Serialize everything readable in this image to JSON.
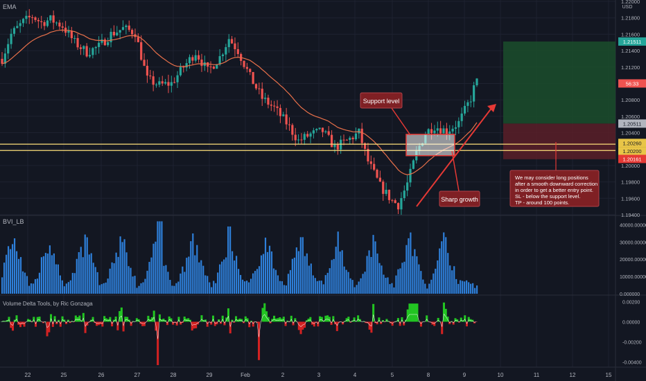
{
  "panes": {
    "main": {
      "label": "EMA",
      "currency": "USD"
    },
    "volume": {
      "label": "BVI_LB"
    },
    "delta": {
      "label": "Volume Delta Tools, by Ric Gonzaga"
    }
  },
  "price_axis": {
    "ticks": [
      "1.22000",
      "1.21800",
      "1.21600",
      "1.21400",
      "1.21200",
      "1.21000",
      "1.20800",
      "1.20600",
      "1.20400",
      "1.20200",
      "1.20000",
      "1.19800",
      "1.19600",
      "1.19400"
    ],
    "badges": [
      {
        "id": "tp",
        "text": "1.21511",
        "color": "#26a69a"
      },
      {
        "id": "last",
        "text": "56:33",
        "color": "#ef5350"
      },
      {
        "id": "entry",
        "text": "1.20511",
        "color": "#b2b5be"
      },
      {
        "id": "upper",
        "text": "1.20260",
        "color": "#e8c547"
      },
      {
        "id": "lower",
        "text": "1.20200",
        "color": "#e8c547"
      },
      {
        "id": "sl",
        "text": "1.20161",
        "color": "#e53935"
      }
    ]
  },
  "volume_axis": {
    "ticks": [
      "40000.000000",
      "30000.000000",
      "20000.000000",
      "10000.000000",
      "0.000000"
    ]
  },
  "delta_axis": {
    "ticks": [
      "0.00200",
      "0.00000",
      "-0.00200",
      "-0.00400"
    ]
  },
  "time_axis": {
    "ticks": [
      "22",
      "25",
      "26",
      "27",
      "28",
      "29",
      "Feb",
      "2",
      "3",
      "4",
      "5",
      "8",
      "9",
      "10",
      "11",
      "12",
      "15"
    ]
  },
  "annotations": {
    "support": "Support level",
    "growth": "Sharp growth",
    "note": [
      "We may consider long positions",
      "after a smooth downward correction",
      "in order to get a better entry point.",
      "SL - below the support level.",
      "TP - around 100 points."
    ]
  },
  "colors": {
    "background": "#131722",
    "up": "#26a69a",
    "down": "#ef5350",
    "ema": "#e8704a",
    "support": "#ffe07a",
    "volume": "#2e7fd9",
    "delta_pos": "#22c522",
    "delta_neg": "#d32222",
    "tp_zone": "#1b4d2c",
    "sl_zone": "#5a1f28",
    "annotation": "#7f2024"
  },
  "chart_data": [
    {
      "type": "candlestick",
      "title": "EMA",
      "ylim": [
        1.194,
        1.22
      ],
      "y_unit": "USD",
      "ema_visible": true,
      "support_levels": [
        1.2026,
        1.202
      ],
      "long_position": {
        "entry": 1.20511,
        "take_profit": 1.21511,
        "stop_loss": 1.20161
      },
      "last_price_marker": "56:33",
      "x_ticks": [
        "22",
        "25",
        "26",
        "27",
        "28",
        "29",
        "Feb",
        "2",
        "3",
        "4",
        "5",
        "8",
        "9",
        "10",
        "11",
        "12",
        "15"
      ],
      "anchors": [
        {
          "t": 0,
          "p": 1.213
        },
        {
          "t": 3,
          "p": 1.216
        },
        {
          "t": 7,
          "p": 1.2175
        },
        {
          "t": 10,
          "p": 1.2182
        },
        {
          "t": 13,
          "p": 1.2174
        },
        {
          "t": 16,
          "p": 1.2178
        },
        {
          "t": 20,
          "p": 1.217
        },
        {
          "t": 24,
          "p": 1.215
        },
        {
          "t": 28,
          "p": 1.2138
        },
        {
          "t": 32,
          "p": 1.2145
        },
        {
          "t": 36,
          "p": 1.216
        },
        {
          "t": 40,
          "p": 1.2167
        },
        {
          "t": 44,
          "p": 1.2162
        },
        {
          "t": 48,
          "p": 1.2105
        },
        {
          "t": 52,
          "p": 1.2098
        },
        {
          "t": 56,
          "p": 1.21
        },
        {
          "t": 60,
          "p": 1.212
        },
        {
          "t": 64,
          "p": 1.2138
        },
        {
          "t": 68,
          "p": 1.2115
        },
        {
          "t": 72,
          "p": 1.2132
        },
        {
          "t": 75,
          "p": 1.2155
        },
        {
          "t": 78,
          "p": 1.214
        },
        {
          "t": 82,
          "p": 1.2108
        },
        {
          "t": 86,
          "p": 1.2082
        },
        {
          "t": 90,
          "p": 1.207
        },
        {
          "t": 94,
          "p": 1.2052
        },
        {
          "t": 98,
          "p": 1.203
        },
        {
          "t": 102,
          "p": 1.2038
        },
        {
          "t": 106,
          "p": 1.2042
        },
        {
          "t": 110,
          "p": 1.2022
        },
        {
          "t": 114,
          "p": 1.203
        },
        {
          "t": 118,
          "p": 1.204
        },
        {
          "t": 121,
          "p": 1.2005
        },
        {
          "t": 125,
          "p": 1.1975
        },
        {
          "t": 129,
          "p": 1.1957
        },
        {
          "t": 131,
          "p": 1.1952
        },
        {
          "t": 134,
          "p": 1.1978
        },
        {
          "t": 137,
          "p": 1.2015
        },
        {
          "t": 140,
          "p": 1.204
        },
        {
          "t": 143,
          "p": 1.2048
        },
        {
          "t": 147,
          "p": 1.2042
        },
        {
          "t": 151,
          "p": 1.2052
        },
        {
          "t": 155,
          "p": 1.2082
        },
        {
          "t": 157,
          "p": 1.2106
        }
      ]
    },
    {
      "type": "bar",
      "title": "BVI_LB",
      "ylim": [
        0,
        45000
      ],
      "y_unit": "volume"
    },
    {
      "type": "area",
      "title": "Volume Delta Tools, by Ric Gonzaga",
      "ylim": [
        -0.0045,
        0.0025
      ]
    }
  ]
}
